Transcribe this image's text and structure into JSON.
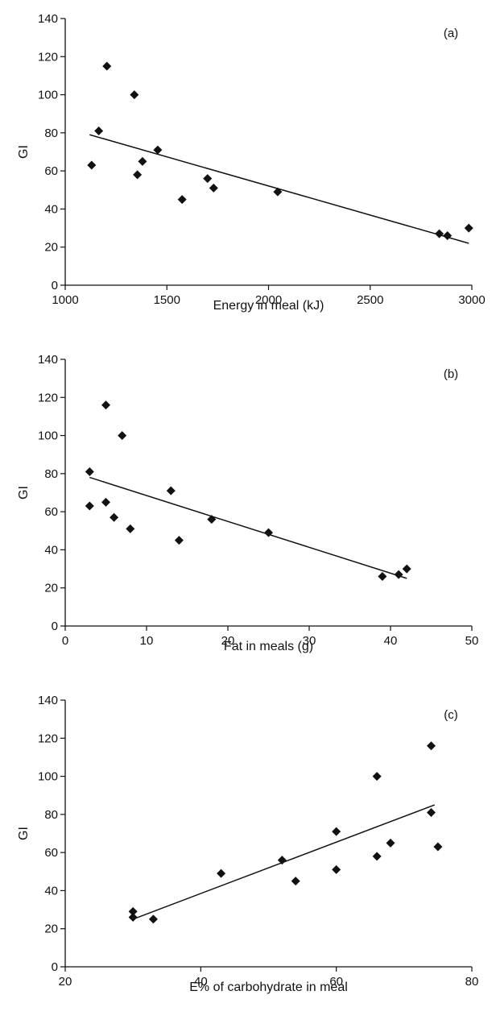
{
  "chart_data": [
    {
      "type": "scatter",
      "panel_label": "(a)",
      "xlabel": "Energy in meal (kJ)",
      "ylabel": "GI",
      "xlim": [
        1000,
        3000
      ],
      "ylim": [
        0,
        140
      ],
      "xticks": [
        1000,
        1500,
        2000,
        2500,
        3000
      ],
      "yticks": [
        0,
        20,
        40,
        60,
        80,
        100,
        120,
        140
      ],
      "points": [
        {
          "x": 1130,
          "y": 63
        },
        {
          "x": 1165,
          "y": 81
        },
        {
          "x": 1205,
          "y": 115
        },
        {
          "x": 1340,
          "y": 100
        },
        {
          "x": 1355,
          "y": 58
        },
        {
          "x": 1380,
          "y": 65
        },
        {
          "x": 1455,
          "y": 71
        },
        {
          "x": 1575,
          "y": 45
        },
        {
          "x": 1700,
          "y": 56
        },
        {
          "x": 1730,
          "y": 51
        },
        {
          "x": 2045,
          "y": 49
        },
        {
          "x": 2840,
          "y": 27
        },
        {
          "x": 2880,
          "y": 26
        },
        {
          "x": 2985,
          "y": 30
        }
      ],
      "trendline": {
        "x": [
          1120,
          2985
        ],
        "y": [
          79,
          22
        ]
      }
    },
    {
      "type": "scatter",
      "panel_label": "(b)",
      "xlabel": "Fat in meals (g)",
      "ylabel": "GI",
      "xlim": [
        0,
        50
      ],
      "ylim": [
        0,
        140
      ],
      "xticks": [
        0,
        10,
        20,
        30,
        40,
        50
      ],
      "yticks": [
        0,
        20,
        40,
        60,
        80,
        100,
        120,
        140
      ],
      "points": [
        {
          "x": 3,
          "y": 81
        },
        {
          "x": 3,
          "y": 63
        },
        {
          "x": 5,
          "y": 116
        },
        {
          "x": 5,
          "y": 65
        },
        {
          "x": 6,
          "y": 57
        },
        {
          "x": 7,
          "y": 100
        },
        {
          "x": 8,
          "y": 51
        },
        {
          "x": 13,
          "y": 71
        },
        {
          "x": 14,
          "y": 45
        },
        {
          "x": 18,
          "y": 56
        },
        {
          "x": 25,
          "y": 49
        },
        {
          "x": 39,
          "y": 26
        },
        {
          "x": 41,
          "y": 27
        },
        {
          "x": 42,
          "y": 30
        }
      ],
      "trendline": {
        "x": [
          3,
          42
        ],
        "y": [
          78,
          25
        ]
      }
    },
    {
      "type": "scatter",
      "panel_label": "(c)",
      "xlabel": "E% of carbohydrate in meal",
      "ylabel": "GI",
      "xlim": [
        20,
        80
      ],
      "ylim": [
        0,
        140
      ],
      "xticks": [
        20,
        40,
        60,
        80
      ],
      "yticks": [
        0,
        20,
        40,
        60,
        80,
        100,
        120,
        140
      ],
      "points": [
        {
          "x": 30,
          "y": 29
        },
        {
          "x": 30,
          "y": 26
        },
        {
          "x": 33,
          "y": 25
        },
        {
          "x": 43,
          "y": 49
        },
        {
          "x": 52,
          "y": 56
        },
        {
          "x": 54,
          "y": 45
        },
        {
          "x": 60,
          "y": 71
        },
        {
          "x": 60,
          "y": 51
        },
        {
          "x": 66,
          "y": 100
        },
        {
          "x": 66,
          "y": 58
        },
        {
          "x": 68,
          "y": 65
        },
        {
          "x": 74,
          "y": 116
        },
        {
          "x": 74,
          "y": 81
        },
        {
          "x": 75,
          "y": 63
        }
      ],
      "trendline": {
        "x": [
          30,
          74.5
        ],
        "y": [
          25,
          85
        ]
      }
    }
  ]
}
